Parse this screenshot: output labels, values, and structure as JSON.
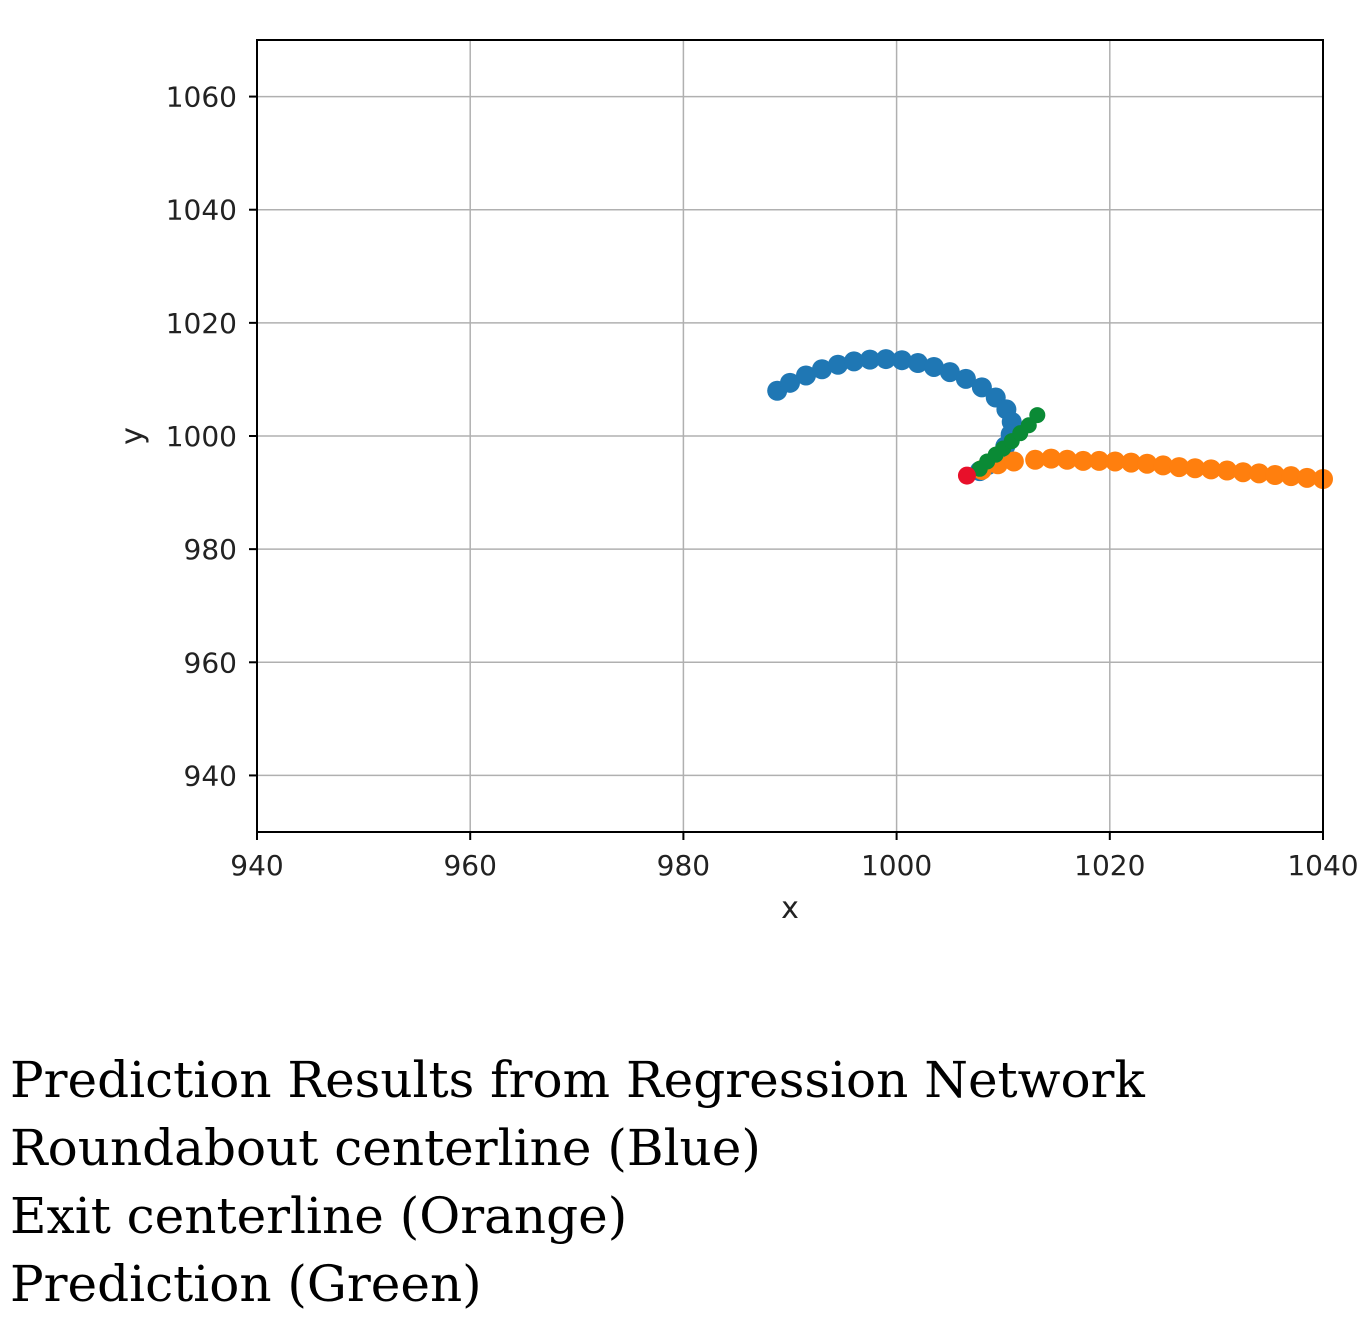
{
  "chart_data": {
    "type": "scatter",
    "title": "",
    "xlabel": "x",
    "ylabel": "y",
    "xlim": [
      940,
      1040
    ],
    "ylim": [
      930,
      1070
    ],
    "xticks": [
      940,
      960,
      980,
      1000,
      1020,
      1040
    ],
    "yticks": [
      940,
      960,
      980,
      1000,
      1020,
      1040,
      1060
    ],
    "grid": true,
    "colors": {
      "roundabout": "#1f77b4",
      "exit": "#ff7f0e",
      "prediction": "#0a8a35",
      "start": "#e8102a",
      "grid": "#b0b0b0",
      "axes": "#000000"
    },
    "series": [
      {
        "key": "roundabout",
        "points": [
          [
            988.8,
            1008.0
          ],
          [
            990.0,
            1009.4
          ],
          [
            991.5,
            1010.7
          ],
          [
            993.0,
            1011.8
          ],
          [
            994.5,
            1012.6
          ],
          [
            996.0,
            1013.2
          ],
          [
            997.5,
            1013.5
          ],
          [
            999.0,
            1013.6
          ],
          [
            1000.5,
            1013.4
          ],
          [
            1002.0,
            1012.9
          ],
          [
            1003.5,
            1012.2
          ],
          [
            1005.0,
            1011.3
          ],
          [
            1006.5,
            1010.1
          ],
          [
            1008.0,
            1008.6
          ],
          [
            1009.3,
            1006.8
          ],
          [
            1010.3,
            1004.7
          ],
          [
            1010.8,
            1002.5
          ],
          [
            1010.7,
            1000.3
          ],
          [
            1010.2,
            998.2
          ],
          [
            1009.5,
            996.4
          ],
          [
            1008.6,
            994.9
          ],
          [
            1007.8,
            993.8
          ]
        ]
      },
      {
        "key": "exit",
        "points": [
          [
            1008.0,
            994.0
          ],
          [
            1009.5,
            995.0
          ],
          [
            1011.0,
            995.5
          ],
          [
            1013.0,
            995.8
          ],
          [
            1014.5,
            996.0
          ],
          [
            1016.0,
            995.8
          ],
          [
            1017.5,
            995.6
          ],
          [
            1019.0,
            995.6
          ],
          [
            1020.5,
            995.5
          ],
          [
            1022.0,
            995.3
          ],
          [
            1023.5,
            995.1
          ],
          [
            1025.0,
            994.8
          ],
          [
            1026.5,
            994.5
          ],
          [
            1028.0,
            994.3
          ],
          [
            1029.5,
            994.1
          ],
          [
            1031.0,
            993.9
          ],
          [
            1032.5,
            993.6
          ],
          [
            1034.0,
            993.4
          ],
          [
            1035.5,
            993.1
          ],
          [
            1037.0,
            992.9
          ],
          [
            1038.5,
            992.6
          ],
          [
            1040.0,
            992.4
          ]
        ]
      },
      {
        "key": "prediction",
        "points": [
          [
            1007.8,
            994.2
          ],
          [
            1008.5,
            995.5
          ],
          [
            1009.3,
            996.7
          ],
          [
            1010.0,
            997.8
          ],
          [
            1010.8,
            999.1
          ],
          [
            1011.6,
            1000.5
          ],
          [
            1012.4,
            1001.9
          ],
          [
            1013.2,
            1003.7
          ]
        ]
      },
      {
        "key": "start",
        "points": [
          [
            1006.6,
            993.0
          ]
        ]
      }
    ]
  },
  "caption": {
    "lines": [
      "Prediction Results from Regression Network",
      "Roundabout centerline (Blue)",
      "Exit centerline (Orange)",
      "Prediction (Green)"
    ]
  }
}
